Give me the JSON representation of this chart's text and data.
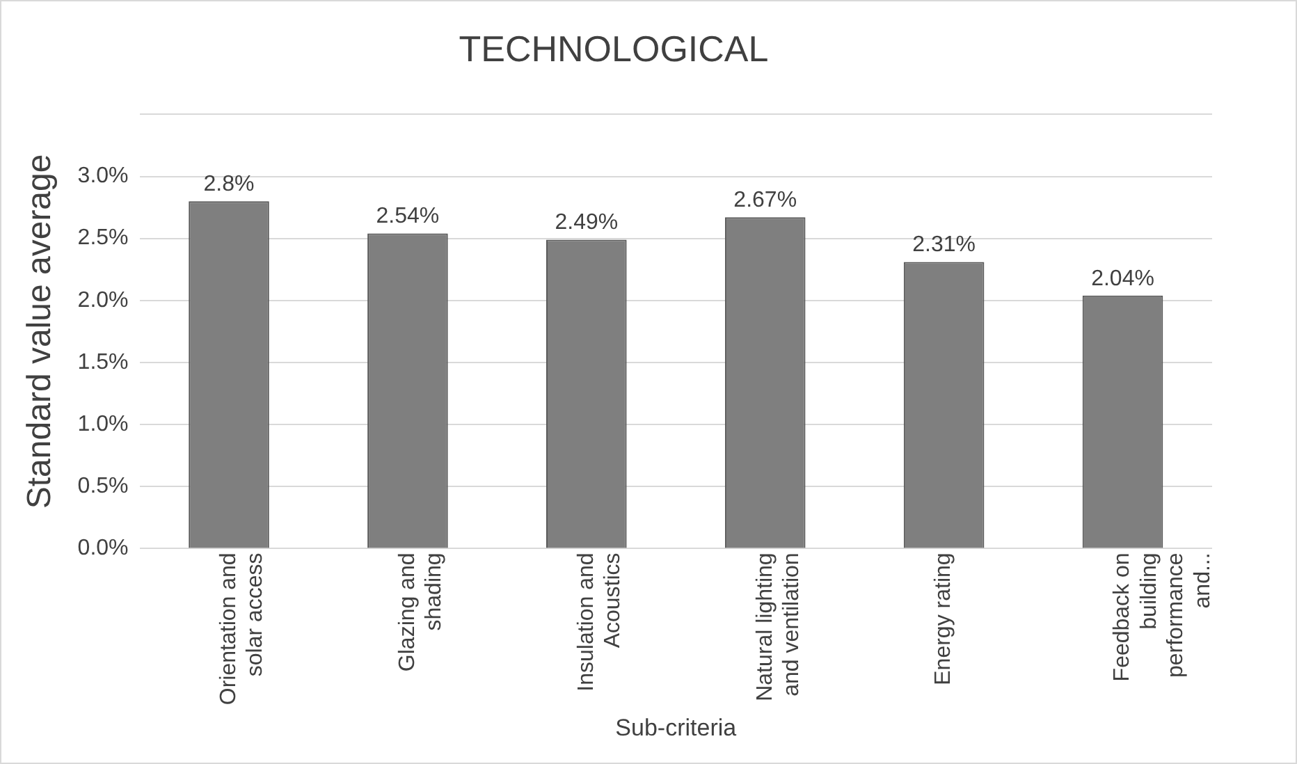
{
  "chart_data": {
    "type": "bar",
    "title": "TECHNOLOGICAL",
    "xlabel": "Sub-criteria",
    "ylabel": "Standard value average",
    "categories": [
      "Orientation and solar access",
      "Glazing and shading",
      "Insulation and Acoustics",
      "Natural lighting and ventilation",
      "Energy rating",
      "Feedback on building performance and..."
    ],
    "values": [
      2.8,
      2.54,
      2.49,
      2.67,
      2.31,
      2.04
    ],
    "value_labels": [
      "2.8%",
      "2.54%",
      "2.49%",
      "2.67%",
      "2.31%",
      "2.04%"
    ],
    "color": "#7f7f7f",
    "ylim": [
      0,
      3.5
    ],
    "yticks": [
      {
        "value": 0,
        "label": "0.0%"
      },
      {
        "value": 0.5,
        "label": "0.5%"
      },
      {
        "value": 1,
        "label": "1.0%"
      },
      {
        "value": 1.5,
        "label": "1.5%"
      },
      {
        "value": 2,
        "label": "2.0%"
      },
      {
        "value": 2.5,
        "label": "2.5%"
      },
      {
        "value": 3,
        "label": "3.0%"
      },
      {
        "value": 3.5,
        "label": null
      }
    ],
    "grid": "y"
  }
}
